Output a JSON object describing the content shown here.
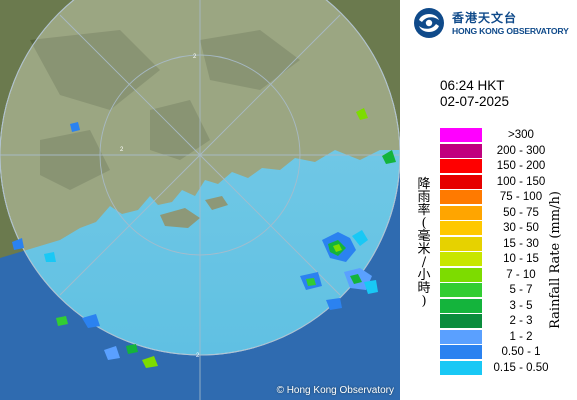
{
  "map": {
    "copyright": "© Hong Kong Observatory",
    "ring_labels": [
      "2",
      "2",
      "2"
    ],
    "colors": {
      "sea_outside": "#2f6bb0",
      "sea_inside": "#3dbfe3",
      "land_dark": "#4c5a3a",
      "land_light": "#8a9a6a",
      "coverage_overlay": "#ffffff",
      "ring_line": "#9fb3c4"
    }
  },
  "header": {
    "logo_zh": "香港天文台",
    "logo_en": "HONG KONG OBSERVATORY",
    "logo_icon": "hko-swirl-icon"
  },
  "timestamp": {
    "time": "06:24 HKT",
    "date": "02-07-2025"
  },
  "legend": {
    "unit_zh": [
      "降",
      "雨",
      "率",
      "(",
      "毫",
      "米",
      "/",
      "小",
      "時",
      ")"
    ],
    "unit_en": "Rainfall Rate (mm/h)",
    "items": [
      {
        "label": ">300",
        "color": "#ff00ff"
      },
      {
        "label": "200 - 300",
        "color": "#c0007f"
      },
      {
        "label": "150 - 200",
        "color": "#ff0000"
      },
      {
        "label": "100 - 150",
        "color": "#e60000"
      },
      {
        "label": "75 - 100",
        "color": "#ff7a00"
      },
      {
        "label": "50 - 75",
        "color": "#ffa500"
      },
      {
        "label": "30 - 50",
        "color": "#ffc800"
      },
      {
        "label": "15 - 30",
        "color": "#e6d200"
      },
      {
        "label": "10 - 15",
        "color": "#c8e600"
      },
      {
        "label": "7 - 10",
        "color": "#7ddc00"
      },
      {
        "label": "5 - 7",
        "color": "#32cd32"
      },
      {
        "label": "3 - 5",
        "color": "#14b43c"
      },
      {
        "label": "2 - 3",
        "color": "#0a8c3c"
      },
      {
        "label": "1 - 2",
        "color": "#5aa0ff"
      },
      {
        "label": "0.50 - 1",
        "color": "#2b82f0"
      },
      {
        "label": "0.15 - 0.50",
        "color": "#19c8f5"
      }
    ]
  }
}
